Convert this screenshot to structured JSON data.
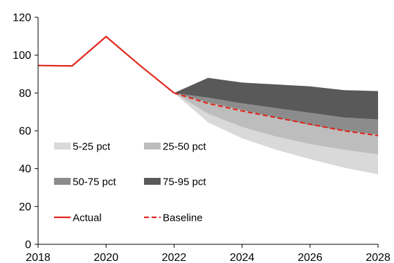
{
  "chart_data": {
    "type": "area",
    "title": "",
    "xlabel": "",
    "ylabel": "",
    "xlim": [
      2018,
      2028
    ],
    "ylim": [
      0,
      120
    ],
    "x_ticks": [
      "2018",
      "2020",
      "2022",
      "2024",
      "2026",
      "2028"
    ],
    "y_ticks": [
      "0",
      "20",
      "40",
      "60",
      "80",
      "100",
      "120"
    ],
    "grid": false,
    "legend_position": "inside-left",
    "x": [
      2022,
      2023,
      2024,
      2025,
      2026,
      2027,
      2028
    ],
    "percentiles": {
      "p5": [
        80,
        64.5,
        56,
        50,
        45,
        40.5,
        37
      ],
      "p25": [
        80,
        69,
        62,
        57,
        53,
        50,
        47.5
      ],
      "p50": [
        80,
        75,
        71,
        67,
        63,
        60,
        58
      ],
      "p75": [
        80,
        77.5,
        74.5,
        72,
        69.5,
        67,
        66
      ],
      "p95": [
        80,
        88,
        85.5,
        84.5,
        83.5,
        81.5,
        81
      ]
    },
    "series": [
      {
        "name": "5-25 pct",
        "kind": "band",
        "lower": "p5",
        "upper": "p25",
        "color": "#d9d9d9"
      },
      {
        "name": "25-50 pct",
        "kind": "band",
        "lower": "p25",
        "upper": "p50",
        "color": "#bdbdbd"
      },
      {
        "name": "50-75 pct",
        "kind": "band",
        "lower": "p50",
        "upper": "p75",
        "color": "#8c8c8c"
      },
      {
        "name": "75-95 pct",
        "kind": "band",
        "lower": "p75",
        "upper": "p95",
        "color": "#595959"
      },
      {
        "name": "Actual",
        "kind": "line",
        "color": "#e0261d",
        "x": [
          2018,
          2019,
          2020,
          2021,
          2022
        ],
        "values": [
          94.5,
          94.3,
          109.8,
          94.5,
          80
        ]
      },
      {
        "name": "Baseline",
        "kind": "dashed-line",
        "color": "#e0261d",
        "x": [
          2022,
          2023,
          2024,
          2025,
          2026,
          2027,
          2028
        ],
        "values": [
          80,
          74.5,
          70.5,
          67,
          63.5,
          60,
          57.5
        ]
      }
    ]
  }
}
